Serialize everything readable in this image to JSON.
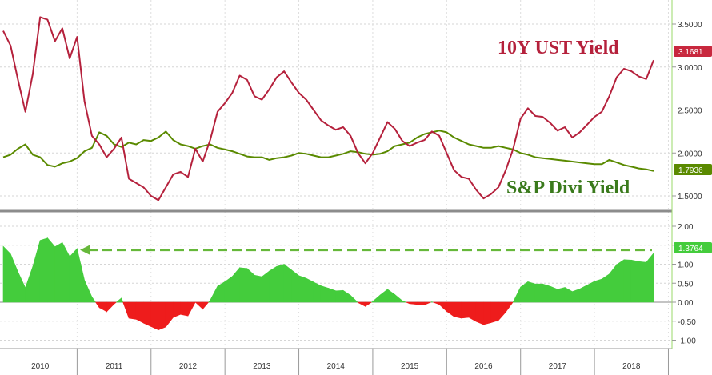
{
  "chart_data": [
    {
      "type": "line",
      "title": "",
      "xlabel": "",
      "ylabel": "",
      "x_tick_labels": [
        "2010",
        "2011",
        "2012",
        "2013",
        "2014",
        "2015",
        "2016",
        "2017",
        "2018"
      ],
      "ylim": [
        1.3,
        3.8
      ],
      "y_ticks": [
        "1.5000",
        "2.0000",
        "2.5000",
        "3.0000",
        "3.5000"
      ],
      "grid": true,
      "x_years": [
        2010.0,
        2010.1,
        2010.2,
        2010.3,
        2010.4,
        2010.5,
        2010.6,
        2010.7,
        2010.8,
        2010.9,
        2011.0,
        2011.1,
        2011.2,
        2011.3,
        2011.4,
        2011.5,
        2011.6,
        2011.7,
        2011.8,
        2011.9,
        2012.0,
        2012.1,
        2012.2,
        2012.3,
        2012.4,
        2012.5,
        2012.6,
        2012.7,
        2012.8,
        2012.9,
        2013.0,
        2013.1,
        2013.2,
        2013.3,
        2013.4,
        2013.5,
        2013.6,
        2013.7,
        2013.8,
        2013.9,
        2014.0,
        2014.1,
        2014.2,
        2014.3,
        2014.4,
        2014.5,
        2014.6,
        2014.7,
        2014.8,
        2014.9,
        2015.0,
        2015.1,
        2015.2,
        2015.3,
        2015.4,
        2015.5,
        2015.6,
        2015.7,
        2015.8,
        2015.9,
        2016.0,
        2016.1,
        2016.2,
        2016.3,
        2016.4,
        2016.5,
        2016.6,
        2016.7,
        2016.8,
        2016.9,
        2017.0,
        2017.1,
        2017.2,
        2017.3,
        2017.4,
        2017.5,
        2017.6,
        2017.7,
        2017.8,
        2017.9,
        2018.0,
        2018.1,
        2018.2,
        2018.3,
        2018.4,
        2018.5,
        2018.6,
        2018.7,
        2018.8
      ],
      "series": [
        {
          "name": "10Y UST Yield",
          "color": "#b5213c",
          "values": [
            3.42,
            3.25,
            2.85,
            2.48,
            2.92,
            3.58,
            3.55,
            3.3,
            3.45,
            3.1,
            3.35,
            2.6,
            2.2,
            2.1,
            1.95,
            2.05,
            2.18,
            1.7,
            1.65,
            1.6,
            1.5,
            1.45,
            1.6,
            1.75,
            1.78,
            1.72,
            2.05,
            1.9,
            2.15,
            2.48,
            2.58,
            2.7,
            2.9,
            2.85,
            2.66,
            2.62,
            2.74,
            2.88,
            2.95,
            2.82,
            2.7,
            2.62,
            2.5,
            2.38,
            2.32,
            2.27,
            2.3,
            2.2,
            2.0,
            1.88,
            2.0,
            2.18,
            2.36,
            2.28,
            2.14,
            2.08,
            2.12,
            2.15,
            2.25,
            2.2,
            2.0,
            1.8,
            1.72,
            1.7,
            1.57,
            1.47,
            1.52,
            1.6,
            1.8,
            2.05,
            2.4,
            2.52,
            2.43,
            2.42,
            2.35,
            2.26,
            2.3,
            2.18,
            2.24,
            2.33,
            2.42,
            2.48,
            2.66,
            2.88,
            2.98,
            2.95,
            2.89,
            2.86,
            3.08
          ]
        },
        {
          "name": "S&P Divi Yield",
          "color": "#5a8a00",
          "values": [
            1.95,
            1.98,
            2.05,
            2.1,
            1.98,
            1.95,
            1.86,
            1.84,
            1.88,
            1.9,
            1.94,
            2.02,
            2.06,
            2.24,
            2.2,
            2.1,
            2.07,
            2.12,
            2.1,
            2.15,
            2.14,
            2.18,
            2.25,
            2.15,
            2.1,
            2.08,
            2.05,
            2.08,
            2.1,
            2.06,
            2.04,
            2.02,
            1.99,
            1.96,
            1.95,
            1.95,
            1.92,
            1.94,
            1.95,
            1.97,
            2.0,
            1.99,
            1.97,
            1.95,
            1.95,
            1.97,
            1.99,
            2.02,
            2.01,
            1.99,
            1.98,
            1.99,
            2.02,
            2.08,
            2.1,
            2.12,
            2.18,
            2.22,
            2.24,
            2.26,
            2.24,
            2.18,
            2.14,
            2.1,
            2.08,
            2.06,
            2.06,
            2.08,
            2.06,
            2.04,
            2.0,
            1.98,
            1.95,
            1.94,
            1.93,
            1.92,
            1.91,
            1.9,
            1.89,
            1.88,
            1.87,
            1.87,
            1.92,
            1.89,
            1.86,
            1.84,
            1.82,
            1.81,
            1.79
          ]
        }
      ],
      "annotations": [
        {
          "text": "10Y UST Yield",
          "color": "#b5213c"
        },
        {
          "text": "S&P Divi Yield",
          "color": "#3a7a1c"
        }
      ],
      "last_value_labels": [
        {
          "text": "3.1681",
          "color": "#c8283e"
        },
        {
          "text": "1.7936",
          "color": "#5a8a00"
        }
      ]
    },
    {
      "type": "area",
      "title": "",
      "xlabel": "",
      "ylabel": "",
      "ylim": [
        -1.2,
        2.2
      ],
      "y_ticks": [
        "-1.00",
        "-0.50",
        "0.00",
        "0.50",
        "1.00",
        "1.50",
        "2.00"
      ],
      "grid": true,
      "x_years": "same as first chart",
      "series": [
        {
          "name": "",
          "positive_color": "#44cc3c",
          "negative_color": "#ee1c1c",
          "values": [
            1.47,
            1.27,
            0.8,
            0.38,
            0.94,
            1.63,
            1.69,
            1.46,
            1.57,
            1.2,
            1.41,
            0.58,
            0.14,
            -0.14,
            -0.25,
            -0.05,
            0.11,
            -0.42,
            -0.45,
            -0.55,
            -0.64,
            -0.73,
            -0.65,
            -0.4,
            -0.32,
            -0.36,
            0.0,
            -0.18,
            0.05,
            0.42,
            0.54,
            0.68,
            0.91,
            0.89,
            0.71,
            0.67,
            0.82,
            0.94,
            1.0,
            0.85,
            0.7,
            0.63,
            0.53,
            0.43,
            0.37,
            0.3,
            0.31,
            0.18,
            -0.01,
            -0.11,
            0.02,
            0.19,
            0.34,
            0.2,
            0.04,
            -0.04,
            -0.06,
            -0.07,
            0.01,
            -0.06,
            -0.24,
            -0.38,
            -0.42,
            -0.4,
            -0.51,
            -0.59,
            -0.54,
            -0.48,
            -0.26,
            0.01,
            0.4,
            0.54,
            0.48,
            0.48,
            0.42,
            0.34,
            0.39,
            0.28,
            0.35,
            0.45,
            0.55,
            0.61,
            0.74,
            0.99,
            1.12,
            1.11,
            1.07,
            1.05,
            1.29
          ]
        }
      ],
      "reference_line": {
        "value": 1.3764,
        "style": "dashed arrow",
        "color": "#66b83a"
      },
      "last_value_labels": [
        {
          "text": "1.3764",
          "color": "#44cc3c"
        }
      ]
    }
  ]
}
